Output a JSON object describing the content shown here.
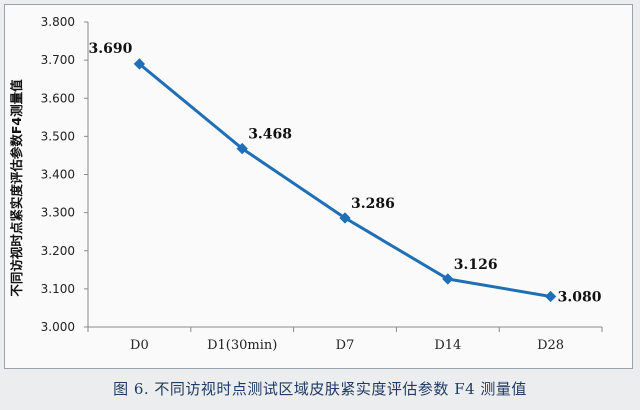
{
  "chart_data": {
    "type": "line",
    "title": "",
    "xlabel": "",
    "ylabel": "不同访视时点紧实度评估参数F4测量值",
    "categories": [
      "D0",
      "D1(30min)",
      "D7",
      "D14",
      "D28"
    ],
    "series": [
      {
        "values": [
          3.69,
          3.468,
          3.286,
          3.126,
          3.08
        ]
      }
    ],
    "data_labels": [
      "3.690",
      "3.468",
      "3.286",
      "3.126",
      "3.080"
    ],
    "ylim": [
      3.0,
      3.8
    ],
    "yticks": [
      "3.000",
      "3.100",
      "3.200",
      "3.300",
      "3.400",
      "3.500",
      "3.600",
      "3.700",
      "3.800"
    ],
    "grid": false,
    "line_color": "#1e6fb8"
  },
  "caption": "图 6.  不同访视时点测试区域皮肤紧实度评估参数 F4 测量值"
}
